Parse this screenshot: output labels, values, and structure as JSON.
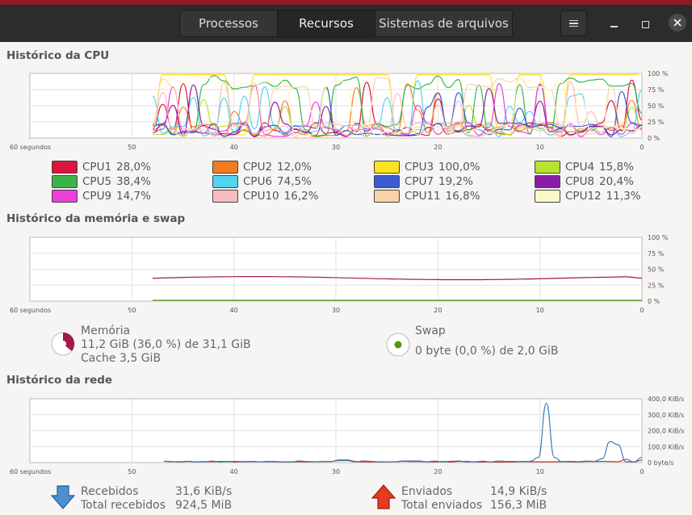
{
  "tabs": [
    {
      "label": "Processos",
      "active": false
    },
    {
      "label": "Recursos",
      "active": true
    },
    {
      "label": "Sistemas de arquivos",
      "active": false
    }
  ],
  "cpu": {
    "title": "Histórico da CPU",
    "x_left": "60 segundos",
    "x_ticks": [
      "50",
      "40",
      "30",
      "20",
      "10",
      "0"
    ],
    "y_ticks": [
      "100 %",
      "75 %",
      "50 %",
      "25 %",
      "0 %"
    ],
    "cores": [
      {
        "label": "CPU1",
        "value": "28,0%",
        "color": "#dc143c"
      },
      {
        "label": "CPU2",
        "value": "12,0%",
        "color": "#f47b20"
      },
      {
        "label": "CPU3",
        "value": "100,0%",
        "color": "#fde21c"
      },
      {
        "label": "CPU4",
        "value": "15,8%",
        "color": "#b7e32c"
      },
      {
        "label": "CPU5",
        "value": "38,4%",
        "color": "#3bb44a"
      },
      {
        "label": "CPU6",
        "value": "74,5%",
        "color": "#52d4f2"
      },
      {
        "label": "CPU7",
        "value": "19,2%",
        "color": "#3c5bd1"
      },
      {
        "label": "CPU8",
        "value": "20,4%",
        "color": "#8b1ca6"
      },
      {
        "label": "CPU9",
        "value": "14,7%",
        "color": "#ec3ed8"
      },
      {
        "label": "CPU10",
        "value": "16,2%",
        "color": "#f6bcc0"
      },
      {
        "label": "CPU11",
        "value": "16,8%",
        "color": "#fbd2a9"
      },
      {
        "label": "CPU12",
        "value": "11,3%",
        "color": "#fdf8c8"
      }
    ]
  },
  "memory": {
    "title": "Histórico da memória e swap",
    "x_left": "60 segundos",
    "x_ticks": [
      "50",
      "40",
      "30",
      "20",
      "10",
      "0"
    ],
    "y_ticks": [
      "100 %",
      "75 %",
      "50 %",
      "25 %",
      "0 %"
    ],
    "mem_label": "Memória",
    "mem_usage": "11,2 GiB (36,0 %) de 31,1 GiB",
    "mem_cache": "Cache 3,5 GiB",
    "mem_color": "#a11a4a",
    "mem_fraction": 0.36,
    "swap_label": "Swap",
    "swap_usage": "0 byte (0,0 %) de 2,0 GiB",
    "swap_color": "#4e9a06",
    "swap_fraction": 0.0
  },
  "network": {
    "title": "Histórico da rede",
    "x_left": "60 segundos",
    "x_ticks": [
      "50",
      "40",
      "30",
      "20",
      "10",
      "0"
    ],
    "y_ticks": [
      "400,0 KiB/s",
      "300,0 KiB/s",
      "200,0 KiB/s",
      "100,0 KiB/s",
      "0 byte/s"
    ],
    "recv_label": "Recebidos",
    "recv_rate": "31,6 KiB/s",
    "recv_total_label": "Total recebidos",
    "recv_total": "924,5 MiB",
    "recv_color": "#2f73b5",
    "sent_label": "Enviados",
    "sent_rate": "14,9 KiB/s",
    "sent_total_label": "Total enviados",
    "sent_total": "156,3 MiB",
    "sent_color": "#cc2a1a"
  }
}
